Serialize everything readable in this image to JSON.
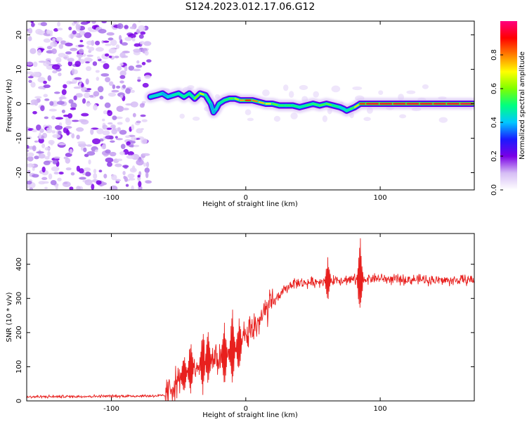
{
  "figure": {
    "title": "S124.2023.012.17.06.G12"
  },
  "chart_data": [
    {
      "type": "heatmap",
      "xlabel": "Height of straight line (km)",
      "ylabel": "Frequency (Hz)",
      "xlim": [
        -163,
        170
      ],
      "ylim": [
        -25,
        24
      ],
      "x_ticks": [
        -100,
        0,
        100
      ],
      "y_ticks": [
        -20,
        -10,
        0,
        10,
        20
      ],
      "colorbar": {
        "label": "Normalized spectral amplitude",
        "range": [
          0,
          1
        ],
        "ticks": [
          "0.0",
          "0.2",
          "0.4",
          "0.6",
          "0.8"
        ],
        "colormap": [
          "#ffffff",
          "#d6bdf5",
          "#7a00e6",
          "#1a1aff",
          "#00c8ff",
          "#00ff80",
          "#7fff00",
          "#ffff00",
          "#ff8000",
          "#ff0000",
          "#ff0080"
        ]
      },
      "noise_region_x": [
        -163,
        -72
      ],
      "ridge": {
        "x": [
          -71,
          -66,
          -62,
          -58,
          -54,
          -50,
          -46,
          -42,
          -38,
          -34,
          -30,
          -26,
          -24,
          -22,
          -20,
          -16,
          -12,
          -8,
          -4,
          0,
          5,
          10,
          15,
          20,
          25,
          30,
          35,
          40,
          45,
          50,
          55,
          60,
          65,
          70,
          73,
          75,
          78,
          81,
          85,
          90,
          100,
          110,
          120,
          130,
          140,
          150,
          160,
          169
        ],
        "y": [
          2,
          2.5,
          3,
          2,
          2.5,
          3,
          2,
          3,
          1.5,
          3,
          2.5,
          0,
          -2.5,
          -1.5,
          0,
          1,
          1.5,
          1.5,
          1,
          1,
          1,
          0.5,
          0,
          0,
          -0.5,
          -0.5,
          -0.5,
          -1,
          -0.5,
          0,
          -0.5,
          0,
          -0.5,
          -1,
          -1.5,
          -2,
          -1.5,
          -1,
          0,
          0,
          0,
          0,
          0,
          0,
          0,
          0,
          0,
          0
        ],
        "amplitude": [
          0.4,
          0.45,
          0.4,
          0.35,
          0.45,
          0.5,
          0.45,
          0.55,
          0.4,
          0.8,
          0.55,
          0.4,
          0.35,
          0.4,
          0.45,
          0.5,
          0.55,
          0.6,
          0.7,
          0.85,
          0.9,
          0.7,
          0.8,
          0.6,
          0.55,
          0.5,
          0.55,
          0.45,
          0.5,
          0.55,
          0.5,
          0.6,
          0.55,
          0.45,
          0.4,
          0.45,
          0.5,
          0.6,
          0.85,
          0.9,
          0.95,
          0.9,
          0.95,
          0.9,
          0.95,
          0.9,
          0.95,
          0.95
        ]
      }
    },
    {
      "type": "line",
      "xlabel": "Height of straight line (km)",
      "ylabel": "SNR (10 * v/v)",
      "xlim": [
        -163,
        170
      ],
      "ylim": [
        0,
        490
      ],
      "x_ticks": [
        -100,
        0,
        100
      ],
      "y_ticks": [
        0,
        100,
        200,
        300,
        400
      ],
      "series": [
        {
          "color": "#e8201e",
          "baseline": {
            "x": [
              -163,
              -60,
              -55,
              -45,
              -35,
              -25,
              -15,
              -5,
              5,
              15,
              25,
              35,
              45,
              55,
              65,
              75,
              85,
              95,
              110,
              130,
              150,
              170
            ],
            "y": [
              12,
              15,
              40,
              80,
              110,
              120,
              130,
              160,
              210,
              260,
              310,
              345,
              345,
              350,
              355,
              355,
              355,
              360,
              355,
              355,
              352,
              355
            ]
          },
          "bursts": [
            {
              "x": -46,
              "peak": 150
            },
            {
              "x": -41,
              "peak": 195
            },
            {
              "x": -32,
              "peak": 225
            },
            {
              "x": -28,
              "peak": 215
            },
            {
              "x": -16,
              "peak": 245
            },
            {
              "x": -10,
              "peak": 280
            },
            {
              "x": -5,
              "peak": 255
            },
            {
              "x": 61,
              "peak": 425
            },
            {
              "x": 85,
              "peak": 490
            }
          ]
        }
      ]
    }
  ]
}
